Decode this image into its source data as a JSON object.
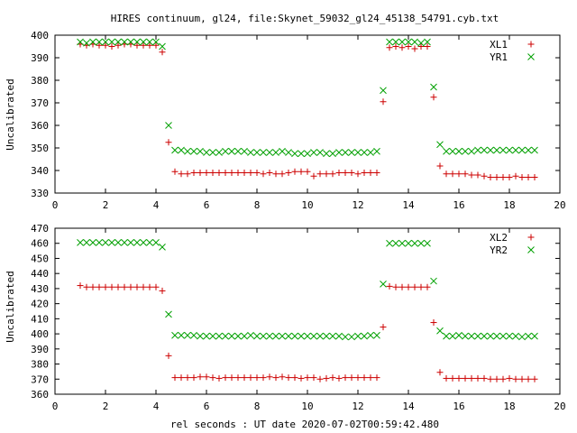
{
  "title": "HIRES continuum, gl24, file:Skynet_59032_gl24_45138_54791.cyb.txt",
  "xlabel": "rel seconds : UT date 2020-07-02T00:59:42.480",
  "chart_data": [
    {
      "type": "scatter",
      "ylabel": "Uncalibrated",
      "xlim": [
        0,
        20
      ],
      "ylim": [
        330,
        400
      ],
      "xticks": [
        "0",
        "2",
        "4",
        "6",
        "8",
        "10",
        "12",
        "14",
        "16",
        "18",
        "20"
      ],
      "yticks": [
        "330",
        "340",
        "350",
        "360",
        "370",
        "380",
        "390",
        "400"
      ],
      "legend_position": "top-right",
      "series": [
        {
          "name": "XL1",
          "marker": "plus",
          "color": "#cc0000",
          "x": [
            1.0,
            1.25,
            1.5,
            1.75,
            2.0,
            2.25,
            2.5,
            2.75,
            3.0,
            3.25,
            3.5,
            3.75,
            4.0,
            4.25,
            4.5,
            4.75,
            5.0,
            5.25,
            5.5,
            5.75,
            6.0,
            6.25,
            6.5,
            6.75,
            7.0,
            7.25,
            7.5,
            7.75,
            8.0,
            8.25,
            8.5,
            8.75,
            9.0,
            9.25,
            9.5,
            9.75,
            10.0,
            10.25,
            10.5,
            10.75,
            11.0,
            11.25,
            11.5,
            11.75,
            12.0,
            12.25,
            12.5,
            12.75,
            13.0,
            13.25,
            13.5,
            13.75,
            14.0,
            14.25,
            14.5,
            14.75,
            15.0,
            15.25,
            15.5,
            15.75,
            16.0,
            16.25,
            16.5,
            16.75,
            17.0,
            17.25,
            17.5,
            17.75,
            18.0,
            18.25,
            18.5,
            18.75,
            19.0
          ],
          "y": [
            396,
            395.5,
            396,
            395.5,
            395.5,
            395,
            395.5,
            396,
            396,
            395.5,
            395.5,
            395.5,
            395.5,
            392.5,
            352.5,
            339.5,
            338.5,
            338.5,
            339,
            339,
            339,
            339,
            339,
            339,
            339,
            339,
            339,
            339,
            339,
            338.5,
            339,
            338.5,
            338.5,
            339,
            339.5,
            339.5,
            339.5,
            337.5,
            338.5,
            338.5,
            338.5,
            339,
            339,
            339,
            338.5,
            339,
            339,
            339,
            370.5,
            394.5,
            395,
            394.5,
            395,
            394,
            395,
            395,
            372.5,
            342,
            338.5,
            338.5,
            338.5,
            338.5,
            338,
            338,
            337.5,
            337,
            337,
            337,
            337,
            337.5,
            337,
            337,
            337
          ]
        },
        {
          "name": "YR1",
          "marker": "cross",
          "color": "#00a000",
          "x": [
            1.0,
            1.25,
            1.5,
            1.75,
            2.0,
            2.25,
            2.5,
            2.75,
            3.0,
            3.25,
            3.5,
            3.75,
            4.0,
            4.25,
            4.5,
            4.75,
            5.0,
            5.25,
            5.5,
            5.75,
            6.0,
            6.25,
            6.5,
            6.75,
            7.0,
            7.25,
            7.5,
            7.75,
            8.0,
            8.25,
            8.5,
            8.75,
            9.0,
            9.25,
            9.5,
            9.75,
            10.0,
            10.25,
            10.5,
            10.75,
            11.0,
            11.25,
            11.5,
            11.75,
            12.0,
            12.25,
            12.5,
            12.75,
            13.0,
            13.25,
            13.5,
            13.75,
            14.0,
            14.25,
            14.5,
            14.75,
            15.0,
            15.25,
            15.5,
            15.75,
            16.0,
            16.25,
            16.5,
            16.75,
            17.0,
            17.25,
            17.5,
            17.75,
            18.0,
            18.25,
            18.5,
            18.75,
            19.0
          ],
          "y": [
            397,
            396.5,
            397,
            397,
            397,
            397,
            397,
            397,
            397,
            397,
            397,
            397,
            397,
            395,
            360,
            349,
            349,
            348.5,
            348.5,
            348.5,
            348,
            348,
            348,
            348.5,
            348.5,
            348.5,
            348.5,
            348,
            348,
            348,
            348,
            348,
            348.5,
            348,
            347.5,
            347.5,
            347.5,
            348,
            348,
            347.5,
            347.5,
            348,
            348,
            348,
            348,
            348,
            348,
            348.5,
            375.5,
            397,
            397,
            397,
            397,
            397,
            396.5,
            397,
            377,
            351.5,
            348.5,
            348.5,
            348.5,
            348.5,
            348.5,
            349,
            349,
            349,
            349,
            349,
            349,
            349,
            349,
            349,
            349
          ]
        }
      ]
    },
    {
      "type": "scatter",
      "ylabel": "Uncalibrated",
      "xlim": [
        0,
        20
      ],
      "ylim": [
        360,
        470
      ],
      "xticks": [
        "0",
        "2",
        "4",
        "6",
        "8",
        "10",
        "12",
        "14",
        "16",
        "18",
        "20"
      ],
      "yticks": [
        "360",
        "370",
        "380",
        "390",
        "400",
        "410",
        "420",
        "430",
        "440",
        "450",
        "460",
        "470"
      ],
      "legend_position": "top-right",
      "series": [
        {
          "name": "XL2",
          "marker": "plus",
          "color": "#cc0000",
          "x": [
            1.0,
            1.25,
            1.5,
            1.75,
            2.0,
            2.25,
            2.5,
            2.75,
            3.0,
            3.25,
            3.5,
            3.75,
            4.0,
            4.25,
            4.5,
            4.75,
            5.0,
            5.25,
            5.5,
            5.75,
            6.0,
            6.25,
            6.5,
            6.75,
            7.0,
            7.25,
            7.5,
            7.75,
            8.0,
            8.25,
            8.5,
            8.75,
            9.0,
            9.25,
            9.5,
            9.75,
            10.0,
            10.25,
            10.5,
            10.75,
            11.0,
            11.25,
            11.5,
            11.75,
            12.0,
            12.25,
            12.5,
            12.75,
            13.0,
            13.25,
            13.5,
            13.75,
            14.0,
            14.25,
            14.5,
            14.75,
            15.0,
            15.25,
            15.5,
            15.75,
            16.0,
            16.25,
            16.5,
            16.75,
            17.0,
            17.25,
            17.5,
            17.75,
            18.0,
            18.25,
            18.5,
            18.75,
            19.0
          ],
          "y": [
            432,
            431,
            431,
            431,
            431,
            431,
            431,
            431,
            431,
            431,
            431,
            431,
            431,
            428.5,
            385.5,
            371,
            371,
            371,
            371,
            371.5,
            371.5,
            371,
            370.5,
            371,
            371,
            371,
            371,
            371,
            371,
            371,
            371.5,
            371,
            371.5,
            371,
            371,
            370.5,
            371,
            371,
            370,
            370.5,
            371,
            370.5,
            371,
            371,
            371,
            371,
            371,
            371,
            404.5,
            431.5,
            431,
            431,
            431,
            431,
            431,
            431,
            407.5,
            374.5,
            370.5,
            370.5,
            370.5,
            370.5,
            370.5,
            370.5,
            370.5,
            370,
            370,
            370,
            370.5,
            370,
            370,
            370,
            370
          ]
        },
        {
          "name": "YR2",
          "marker": "cross",
          "color": "#00a000",
          "x": [
            1.0,
            1.25,
            1.5,
            1.75,
            2.0,
            2.25,
            2.5,
            2.75,
            3.0,
            3.25,
            3.5,
            3.75,
            4.0,
            4.25,
            4.5,
            4.75,
            5.0,
            5.25,
            5.5,
            5.75,
            6.0,
            6.25,
            6.5,
            6.75,
            7.0,
            7.25,
            7.5,
            7.75,
            8.0,
            8.25,
            8.5,
            8.75,
            9.0,
            9.25,
            9.5,
            9.75,
            10.0,
            10.25,
            10.5,
            10.75,
            11.0,
            11.25,
            11.5,
            11.75,
            12.0,
            12.25,
            12.5,
            12.75,
            13.0,
            13.25,
            13.5,
            13.75,
            14.0,
            14.25,
            14.5,
            14.75,
            15.0,
            15.25,
            15.5,
            15.75,
            16.0,
            16.25,
            16.5,
            16.75,
            17.0,
            17.25,
            17.5,
            17.75,
            18.0,
            18.25,
            18.5,
            18.75,
            19.0
          ],
          "y": [
            460.5,
            460.5,
            460.5,
            460.5,
            460.5,
            460.5,
            460.5,
            460.5,
            460.5,
            460.5,
            460.5,
            460.5,
            460.5,
            457.5,
            413,
            399,
            399,
            399,
            399,
            398.5,
            398.5,
            398.5,
            398.5,
            398.5,
            398.5,
            398.5,
            398.5,
            399,
            398.5,
            398.5,
            398.5,
            398.5,
            398.5,
            398.5,
            398.5,
            398.5,
            398.5,
            398.5,
            398.5,
            398.5,
            398.5,
            398.5,
            398,
            398,
            398.5,
            398.5,
            399,
            399,
            433,
            460,
            460,
            460,
            460,
            460,
            460,
            460,
            435,
            402,
            398.5,
            398.5,
            399,
            398.5,
            398.5,
            398.5,
            398.5,
            398.5,
            398.5,
            398.5,
            398.5,
            398.5,
            398,
            398.5,
            398.5
          ]
        }
      ]
    }
  ]
}
